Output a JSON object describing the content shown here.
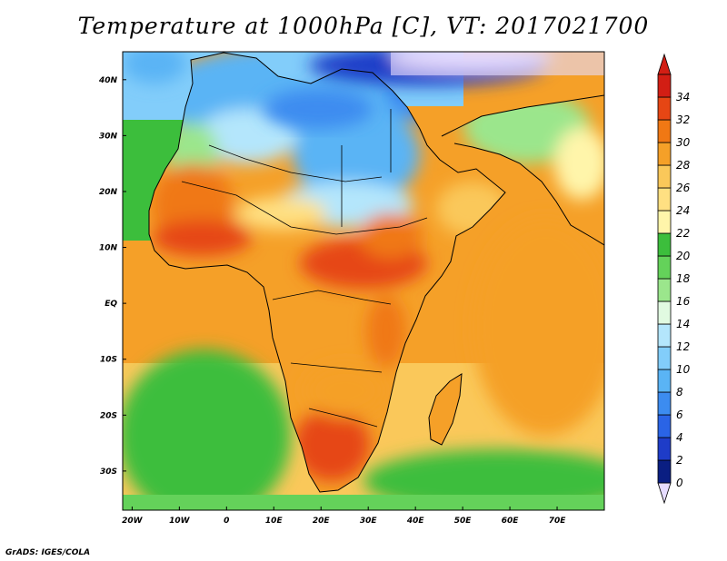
{
  "title": "Temperature at 1000hPa [C], VT: 2017021700",
  "credit": "GrADS: IGES/COLA",
  "map": {
    "lon_range": [
      -22,
      80
    ],
    "lat_range": [
      -37,
      45
    ],
    "lon_ticks": [
      {
        "value": -20,
        "label": "20W"
      },
      {
        "value": -10,
        "label": "10W"
      },
      {
        "value": 0,
        "label": "0"
      },
      {
        "value": 10,
        "label": "10E"
      },
      {
        "value": 20,
        "label": "20E"
      },
      {
        "value": 30,
        "label": "30E"
      },
      {
        "value": 40,
        "label": "40E"
      },
      {
        "value": 50,
        "label": "50E"
      },
      {
        "value": 60,
        "label": "60E"
      },
      {
        "value": 70,
        "label": "70E"
      }
    ],
    "lat_ticks": [
      {
        "value": 40,
        "label": "40N"
      },
      {
        "value": 30,
        "label": "30N"
      },
      {
        "value": 20,
        "label": "20N"
      },
      {
        "value": 10,
        "label": "10N"
      },
      {
        "value": 0,
        "label": "EQ"
      },
      {
        "value": -10,
        "label": "10S"
      },
      {
        "value": -20,
        "label": "20S"
      },
      {
        "value": -30,
        "label": "30S"
      }
    ]
  },
  "colorbar": {
    "levels": [
      0,
      2,
      4,
      6,
      8,
      10,
      12,
      14,
      16,
      18,
      20,
      22,
      24,
      26,
      28,
      30,
      32,
      34
    ],
    "colors": [
      "#0a1e82",
      "#1e3cc8",
      "#2a64e6",
      "#3c8cf0",
      "#5ab4f5",
      "#82cdfa",
      "#b4e6fc",
      "#e1fae1",
      "#9be68c",
      "#64d25a",
      "#3cbe3c",
      "#fff5aa",
      "#ffe082",
      "#fac85a",
      "#f5a028",
      "#f07814",
      "#e64614",
      "#d21e14"
    ],
    "low_cap_color": "#e6dcff",
    "high_cap_color": "#d21e14"
  }
}
